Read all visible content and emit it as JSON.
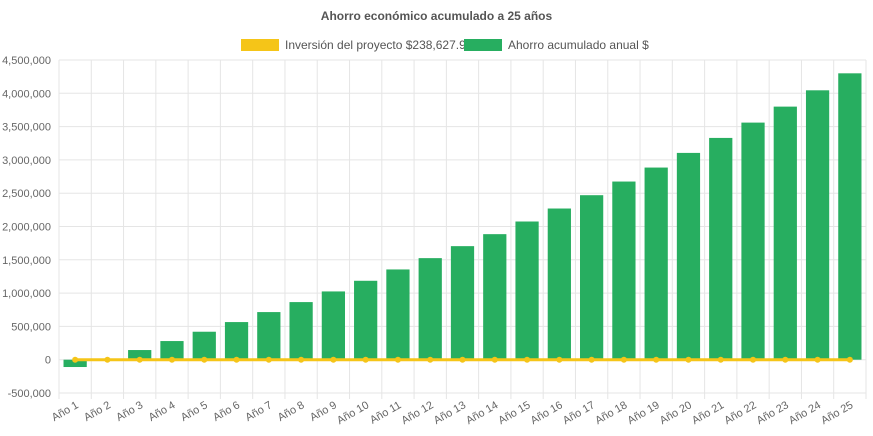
{
  "chart_data": {
    "type": "bar",
    "title": "Ahorro económico acumulado a 25 años",
    "categories": [
      "Año 1",
      "Año 2",
      "Año 3",
      "Año 4",
      "Año 5",
      "Año 6",
      "Año 7",
      "Año 8",
      "Año 9",
      "Año 10",
      "Año 11",
      "Año 12",
      "Año 13",
      "Año 14",
      "Año 15",
      "Año 16",
      "Año 17",
      "Año 18",
      "Año 19",
      "Año 20",
      "Año 21",
      "Año 22",
      "Año 23",
      "Año 24",
      "Año 25"
    ],
    "series": [
      {
        "name": "Inversión del proyecto $238,627.94",
        "type": "line",
        "color": "#f5c518",
        "values": [
          0,
          0,
          0,
          0,
          0,
          0,
          0,
          0,
          0,
          0,
          0,
          0,
          0,
          0,
          0,
          0,
          0,
          0,
          0,
          0,
          0,
          0,
          0,
          0,
          0
        ]
      },
      {
        "name": "Ahorro acumulado anual $",
        "type": "bar",
        "color": "#27ae60",
        "values": [
          -110000,
          10000,
          145000,
          280000,
          420000,
          565000,
          715000,
          865000,
          1025000,
          1185000,
          1355000,
          1525000,
          1705000,
          1885000,
          2075000,
          2270000,
          2470000,
          2675000,
          2885000,
          3105000,
          3330000,
          3560000,
          3800000,
          4045000,
          4300000
        ]
      }
    ],
    "ylim": [
      -500000,
      4500000
    ],
    "yticks": [
      "-500,000",
      "0",
      "500,000",
      "1,000,000",
      "1,500,000",
      "2,000,000",
      "2,500,000",
      "3,000,000",
      "3,500,000",
      "4,000,000",
      "4,500,000"
    ],
    "ytick_values": [
      -500000,
      0,
      500000,
      1000000,
      1500000,
      2000000,
      2500000,
      3000000,
      3500000,
      4000000,
      4500000
    ],
    "grid": true,
    "legend_position": "top"
  }
}
